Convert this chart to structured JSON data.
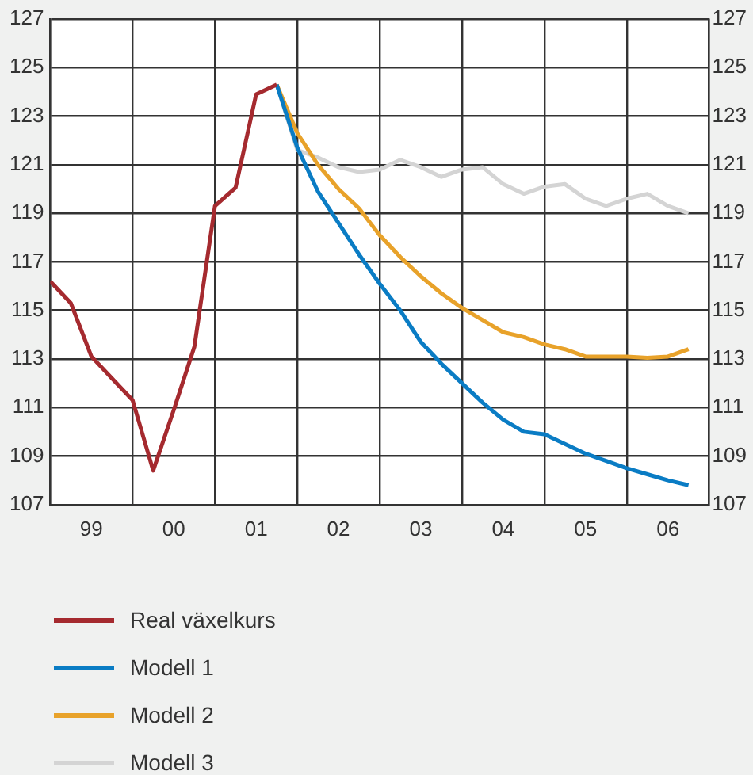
{
  "chart_data": {
    "type": "line",
    "xlim": [
      "1999-01",
      "2007-01"
    ],
    "xticks": [
      {
        "value": "1999",
        "label": null
      },
      {
        "value": "1999-07",
        "label": "99"
      },
      {
        "value": "2000",
        "label": null
      },
      {
        "value": "2000-07",
        "label": "00"
      },
      {
        "value": "2001",
        "label": null
      },
      {
        "value": "2001-07",
        "label": "01"
      },
      {
        "value": "2002",
        "label": null
      },
      {
        "value": "2002-07",
        "label": "02"
      },
      {
        "value": "2003",
        "label": null
      },
      {
        "value": "2003-07",
        "label": "03"
      },
      {
        "value": "2004",
        "label": null
      },
      {
        "value": "2004-07",
        "label": "04"
      },
      {
        "value": "2005",
        "label": null
      },
      {
        "value": "2005-07",
        "label": "05"
      },
      {
        "value": "2006",
        "label": null
      },
      {
        "value": "2006-07",
        "label": "06"
      },
      {
        "value": "2007",
        "label": null
      }
    ],
    "ylim": [
      107,
      127
    ],
    "yticks": [
      107,
      109,
      111,
      113,
      115,
      117,
      119,
      121,
      123,
      125,
      127
    ],
    "y2lim": [
      107,
      127
    ],
    "y2ticks": [
      107,
      109,
      111,
      113,
      115,
      117,
      119,
      121,
      123,
      125,
      127
    ],
    "grid": true,
    "legend": "bottom left",
    "marker": "none",
    "line_style": "solid",
    "series": [
      {
        "name": "Real växelkurs",
        "color": "#a52a2f",
        "x": [
          "1999-01",
          "1999-04",
          "1999-07",
          "1999-10",
          "2000-01",
          "2000-04",
          "2000-07",
          "2000-10",
          "2001-01",
          "2001-04",
          "2001-07",
          "2001-10"
        ],
        "values": [
          116.2,
          115.3,
          113.1,
          112.2,
          111.3,
          108.4,
          110.9,
          113.5,
          119.3,
          120.05,
          123.9,
          124.3
        ]
      },
      {
        "name": "Modell 1",
        "color": "#0a7cc4",
        "x": [
          "2001-10",
          "2002-01",
          "2002-04",
          "2002-07",
          "2002-10",
          "2003-01",
          "2003-04",
          "2003-07",
          "2003-10",
          "2004-01",
          "2004-04",
          "2004-07",
          "2004-10",
          "2005-01",
          "2005-04",
          "2005-07",
          "2005-10",
          "2006-01",
          "2006-04",
          "2006-07",
          "2006-10"
        ],
        "values": [
          124.3,
          121.7,
          119.9,
          118.6,
          117.3,
          116.1,
          115.0,
          113.7,
          112.8,
          112.0,
          111.2,
          110.5,
          110.0,
          109.9,
          109.5,
          109.1,
          108.8,
          108.5,
          108.25,
          108.0,
          107.8
        ]
      },
      {
        "name": "Modell 2",
        "color": "#e8a22a",
        "x": [
          "2001-10",
          "2002-01",
          "2002-04",
          "2002-07",
          "2002-10",
          "2003-01",
          "2003-04",
          "2003-07",
          "2003-10",
          "2004-01",
          "2004-04",
          "2004-07",
          "2004-10",
          "2005-01",
          "2005-04",
          "2005-07",
          "2005-10",
          "2006-01",
          "2006-04",
          "2006-07",
          "2006-10"
        ],
        "values": [
          124.3,
          122.3,
          121.0,
          120.0,
          119.2,
          118.1,
          117.2,
          116.4,
          115.7,
          115.1,
          114.6,
          114.1,
          113.9,
          113.6,
          113.4,
          113.1,
          113.1,
          113.1,
          113.05,
          113.1,
          113.4
        ]
      },
      {
        "name": "Modell 3",
        "color": "#d4d4d4",
        "x": [
          "2001-10",
          "2002-01",
          "2002-04",
          "2002-07",
          "2002-10",
          "2003-01",
          "2003-04",
          "2003-07",
          "2003-10",
          "2004-01",
          "2004-04",
          "2004-07",
          "2004-10",
          "2005-01",
          "2005-04",
          "2005-07",
          "2005-10",
          "2006-01",
          "2006-04",
          "2006-07",
          "2006-10"
        ],
        "values": [
          124.3,
          121.6,
          121.3,
          120.9,
          120.7,
          120.8,
          121.2,
          120.9,
          120.5,
          120.8,
          120.9,
          120.2,
          119.8,
          120.1,
          120.2,
          119.6,
          119.3,
          119.6,
          119.8,
          119.3,
          119.0
        ]
      }
    ]
  }
}
